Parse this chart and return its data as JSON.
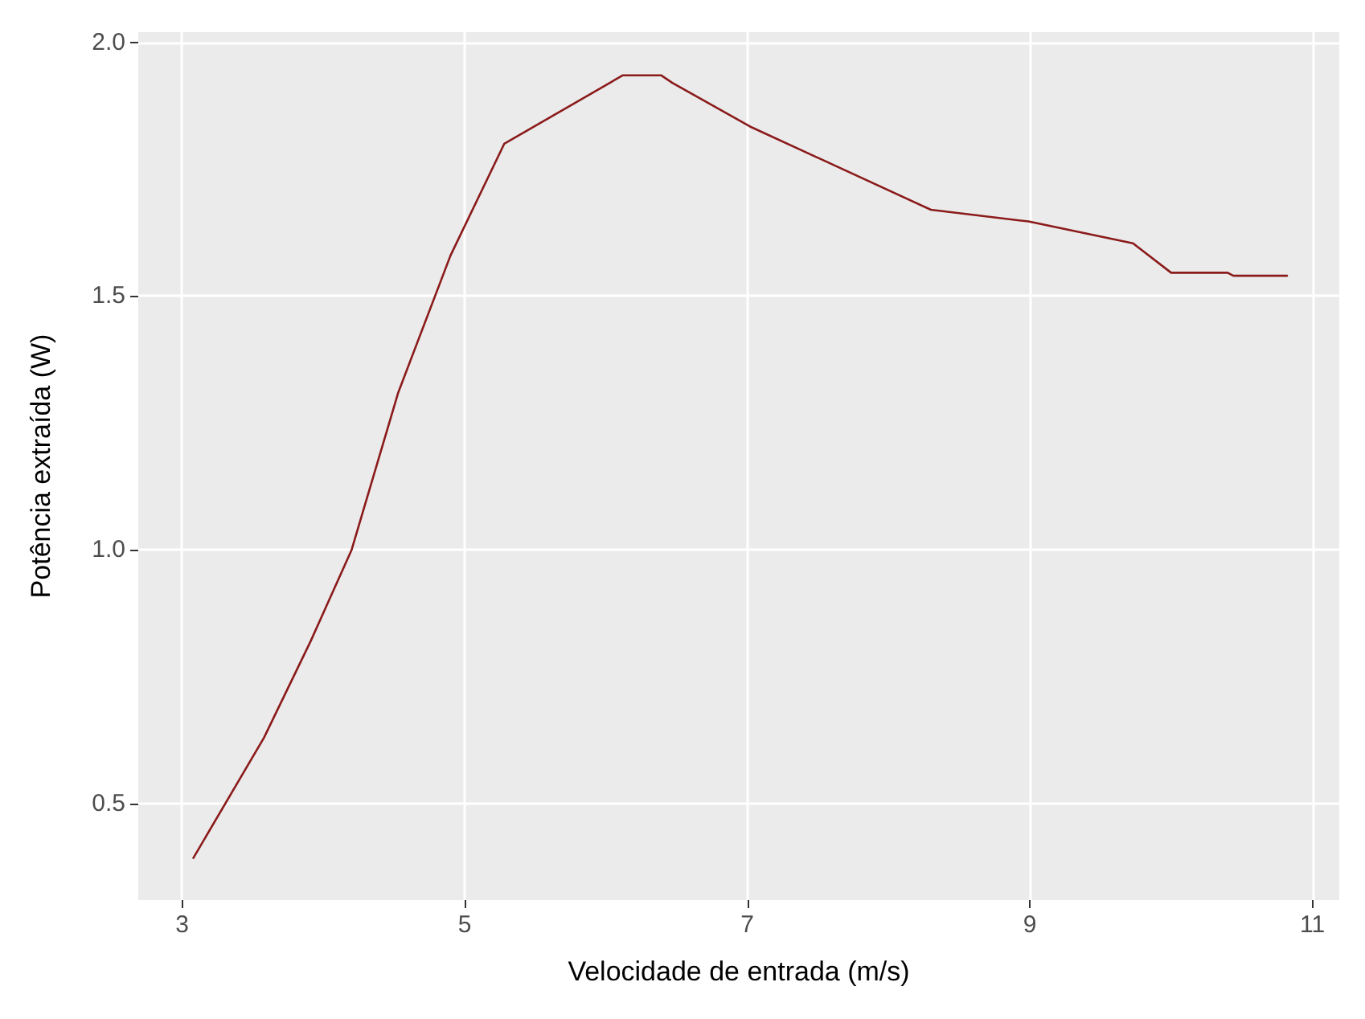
{
  "chart_data": {
    "type": "line",
    "xlabel": "Velocidade de entrada (m/s)",
    "ylabel": "Potência extraída (W)",
    "x": [
      3.08,
      3.58,
      3.91,
      4.2,
      4.53,
      4.9,
      5.28,
      6.12,
      6.39,
      6.47,
      7.02,
      8.3,
      8.99,
      9.73,
      10.0,
      10.4,
      10.44,
      10.82
    ],
    "series": [
      {
        "color": "#8b1a1a",
        "values": [
          0.393,
          0.63,
          0.82,
          1.0,
          1.31,
          1.58,
          1.8,
          1.935,
          1.935,
          1.92,
          1.834,
          1.67,
          1.647,
          1.604,
          1.546,
          1.546,
          1.54,
          1.54
        ]
      }
    ],
    "xlim": [
      2.69,
      11.19
    ],
    "ylim": [
      0.31,
      2.02
    ],
    "xticks": [
      3,
      5,
      7,
      9,
      11
    ],
    "yticks": [
      0.5,
      {
        "value": 1,
        "label": "1.0"
      },
      1.5,
      {
        "value": 2,
        "label": "2.0"
      }
    ],
    "grid": true,
    "marker": "none",
    "line_style": "solid"
  }
}
